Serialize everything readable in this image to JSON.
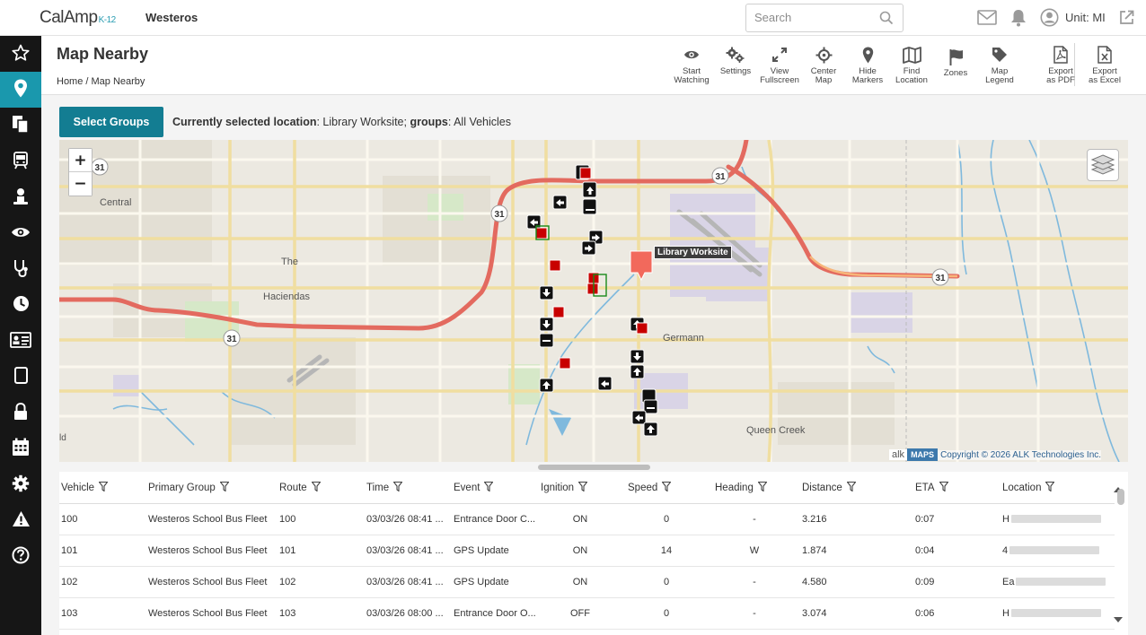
{
  "app": {
    "brand": "CalAmp",
    "brand_suffix": "K-12",
    "org": "Westeros"
  },
  "search": {
    "placeholder": "Search"
  },
  "user": {
    "label": "Unit: MI"
  },
  "sidebar": {
    "items": [
      {
        "name": "star-icon"
      },
      {
        "name": "location-pin-icon",
        "active": true
      },
      {
        "name": "documents-icon"
      },
      {
        "name": "bus-icon"
      },
      {
        "name": "driver-icon"
      },
      {
        "name": "eye-icon"
      },
      {
        "name": "stethoscope-icon"
      },
      {
        "name": "clock-icon"
      },
      {
        "name": "id-card-icon"
      },
      {
        "name": "tablet-icon"
      },
      {
        "name": "lock-icon"
      },
      {
        "name": "calendar-icon"
      },
      {
        "name": "gear-icon"
      },
      {
        "name": "warning-icon"
      },
      {
        "name": "help-icon"
      }
    ]
  },
  "page": {
    "title": "Map Nearby",
    "breadcrumb": "Home / Map Nearby"
  },
  "toolbar": {
    "start_watching": [
      "Start",
      "Watching"
    ],
    "settings": [
      "Settings"
    ],
    "view_fullscreen": [
      "View",
      "Fullscreen"
    ],
    "center_map": [
      "Center",
      "Map"
    ],
    "hide_markers": [
      "Hide",
      "Markers"
    ],
    "find_location": [
      "Find",
      "Location"
    ],
    "zones": [
      "Zones"
    ],
    "map_legend": [
      "Map",
      "Legend"
    ],
    "export_pdf": [
      "Export",
      "as PDF"
    ],
    "export_excel": [
      "Export",
      "as Excel"
    ]
  },
  "selection": {
    "button": "Select Groups",
    "location_label": "Currently selected location",
    "location_value": "Library Worksite",
    "groups_label": "groups",
    "groups_value": "All Vehicles"
  },
  "map": {
    "labels": {
      "central": "Central",
      "the": "The",
      "haciendas": "Haciendas",
      "germann": "Germann",
      "queen_creek": "Queen Creek",
      "ld": "ld",
      "route_31": "31"
    },
    "site_label": "Library Worksite",
    "credit": {
      "alk": "alk",
      "maps": "MAPS",
      "copyright": "Copyright © 2026 ALK Technologies Inc."
    },
    "zoom_in": "+",
    "zoom_out": "−"
  },
  "table": {
    "columns": [
      "Vehicle",
      "Primary Group",
      "Route",
      "Time",
      "Event",
      "Ignition",
      "Speed",
      "Heading",
      "Distance",
      "ETA",
      "Location"
    ],
    "rows": [
      {
        "vehicle": "100",
        "group": "Westeros School Bus Fleet",
        "route": "100",
        "time": "03/03/26 08:41 ...",
        "event": "Entrance Door C...",
        "ignition": "ON",
        "speed": "0",
        "heading": "-",
        "distance": "3.216",
        "eta": "0:07",
        "location": "H"
      },
      {
        "vehicle": "101",
        "group": "Westeros School Bus Fleet",
        "route": "101",
        "time": "03/03/26 08:41 ...",
        "event": "GPS Update",
        "ignition": "ON",
        "speed": "14",
        "heading": "W",
        "distance": "1.874",
        "eta": "0:04",
        "location": "4"
      },
      {
        "vehicle": "102",
        "group": "Westeros School Bus Fleet",
        "route": "102",
        "time": "03/03/26 08:41 ...",
        "event": "GPS Update",
        "ignition": "ON",
        "speed": "0",
        "heading": "-",
        "distance": "4.580",
        "eta": "0:09",
        "location": "Ea"
      },
      {
        "vehicle": "103",
        "group": "Westeros School Bus Fleet",
        "route": "103",
        "time": "03/03/26 08:00 ...",
        "event": "Entrance Door O...",
        "ignition": "OFF",
        "speed": "0",
        "heading": "-",
        "distance": "3.074",
        "eta": "0:06",
        "location": "H"
      }
    ]
  }
}
